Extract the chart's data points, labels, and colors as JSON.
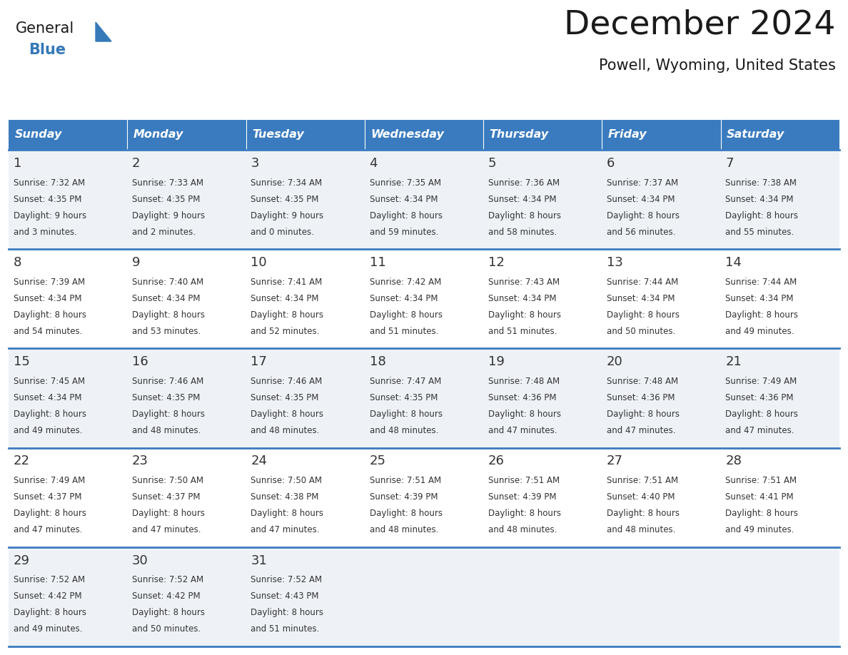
{
  "title": "December 2024",
  "subtitle": "Powell, Wyoming, United States",
  "days_of_week": [
    "Sunday",
    "Monday",
    "Tuesday",
    "Wednesday",
    "Thursday",
    "Friday",
    "Saturday"
  ],
  "header_bg": "#3a7bbf",
  "header_text_color": "#ffffff",
  "cell_bg_light": "#eef2f7",
  "cell_bg_white": "#ffffff",
  "cell_border_color": "#3a7bbf",
  "day_number_color": "#333333",
  "cell_text_color": "#333333",
  "logo_general_color": "#1a1a1a",
  "logo_blue_color": "#3579b8",
  "calendar_data": [
    [
      {
        "day": 1,
        "sunrise": "7:32 AM",
        "sunset": "4:35 PM",
        "daylight": "9 hours and 3 minutes."
      },
      {
        "day": 2,
        "sunrise": "7:33 AM",
        "sunset": "4:35 PM",
        "daylight": "9 hours and 2 minutes."
      },
      {
        "day": 3,
        "sunrise": "7:34 AM",
        "sunset": "4:35 PM",
        "daylight": "9 hours and 0 minutes."
      },
      {
        "day": 4,
        "sunrise": "7:35 AM",
        "sunset": "4:34 PM",
        "daylight": "8 hours and 59 minutes."
      },
      {
        "day": 5,
        "sunrise": "7:36 AM",
        "sunset": "4:34 PM",
        "daylight": "8 hours and 58 minutes."
      },
      {
        "day": 6,
        "sunrise": "7:37 AM",
        "sunset": "4:34 PM",
        "daylight": "8 hours and 56 minutes."
      },
      {
        "day": 7,
        "sunrise": "7:38 AM",
        "sunset": "4:34 PM",
        "daylight": "8 hours and 55 minutes."
      }
    ],
    [
      {
        "day": 8,
        "sunrise": "7:39 AM",
        "sunset": "4:34 PM",
        "daylight": "8 hours and 54 minutes."
      },
      {
        "day": 9,
        "sunrise": "7:40 AM",
        "sunset": "4:34 PM",
        "daylight": "8 hours and 53 minutes."
      },
      {
        "day": 10,
        "sunrise": "7:41 AM",
        "sunset": "4:34 PM",
        "daylight": "8 hours and 52 minutes."
      },
      {
        "day": 11,
        "sunrise": "7:42 AM",
        "sunset": "4:34 PM",
        "daylight": "8 hours and 51 minutes."
      },
      {
        "day": 12,
        "sunrise": "7:43 AM",
        "sunset": "4:34 PM",
        "daylight": "8 hours and 51 minutes."
      },
      {
        "day": 13,
        "sunrise": "7:44 AM",
        "sunset": "4:34 PM",
        "daylight": "8 hours and 50 minutes."
      },
      {
        "day": 14,
        "sunrise": "7:44 AM",
        "sunset": "4:34 PM",
        "daylight": "8 hours and 49 minutes."
      }
    ],
    [
      {
        "day": 15,
        "sunrise": "7:45 AM",
        "sunset": "4:34 PM",
        "daylight": "8 hours and 49 minutes."
      },
      {
        "day": 16,
        "sunrise": "7:46 AM",
        "sunset": "4:35 PM",
        "daylight": "8 hours and 48 minutes."
      },
      {
        "day": 17,
        "sunrise": "7:46 AM",
        "sunset": "4:35 PM",
        "daylight": "8 hours and 48 minutes."
      },
      {
        "day": 18,
        "sunrise": "7:47 AM",
        "sunset": "4:35 PM",
        "daylight": "8 hours and 48 minutes."
      },
      {
        "day": 19,
        "sunrise": "7:48 AM",
        "sunset": "4:36 PM",
        "daylight": "8 hours and 47 minutes."
      },
      {
        "day": 20,
        "sunrise": "7:48 AM",
        "sunset": "4:36 PM",
        "daylight": "8 hours and 47 minutes."
      },
      {
        "day": 21,
        "sunrise": "7:49 AM",
        "sunset": "4:36 PM",
        "daylight": "8 hours and 47 minutes."
      }
    ],
    [
      {
        "day": 22,
        "sunrise": "7:49 AM",
        "sunset": "4:37 PM",
        "daylight": "8 hours and 47 minutes."
      },
      {
        "day": 23,
        "sunrise": "7:50 AM",
        "sunset": "4:37 PM",
        "daylight": "8 hours and 47 minutes."
      },
      {
        "day": 24,
        "sunrise": "7:50 AM",
        "sunset": "4:38 PM",
        "daylight": "8 hours and 47 minutes."
      },
      {
        "day": 25,
        "sunrise": "7:51 AM",
        "sunset": "4:39 PM",
        "daylight": "8 hours and 48 minutes."
      },
      {
        "day": 26,
        "sunrise": "7:51 AM",
        "sunset": "4:39 PM",
        "daylight": "8 hours and 48 minutes."
      },
      {
        "day": 27,
        "sunrise": "7:51 AM",
        "sunset": "4:40 PM",
        "daylight": "8 hours and 48 minutes."
      },
      {
        "day": 28,
        "sunrise": "7:51 AM",
        "sunset": "4:41 PM",
        "daylight": "8 hours and 49 minutes."
      }
    ],
    [
      {
        "day": 29,
        "sunrise": "7:52 AM",
        "sunset": "4:42 PM",
        "daylight": "8 hours and 49 minutes."
      },
      {
        "day": 30,
        "sunrise": "7:52 AM",
        "sunset": "4:42 PM",
        "daylight": "8 hours and 50 minutes."
      },
      {
        "day": 31,
        "sunrise": "7:52 AM",
        "sunset": "4:43 PM",
        "daylight": "8 hours and 51 minutes."
      },
      null,
      null,
      null,
      null
    ]
  ]
}
